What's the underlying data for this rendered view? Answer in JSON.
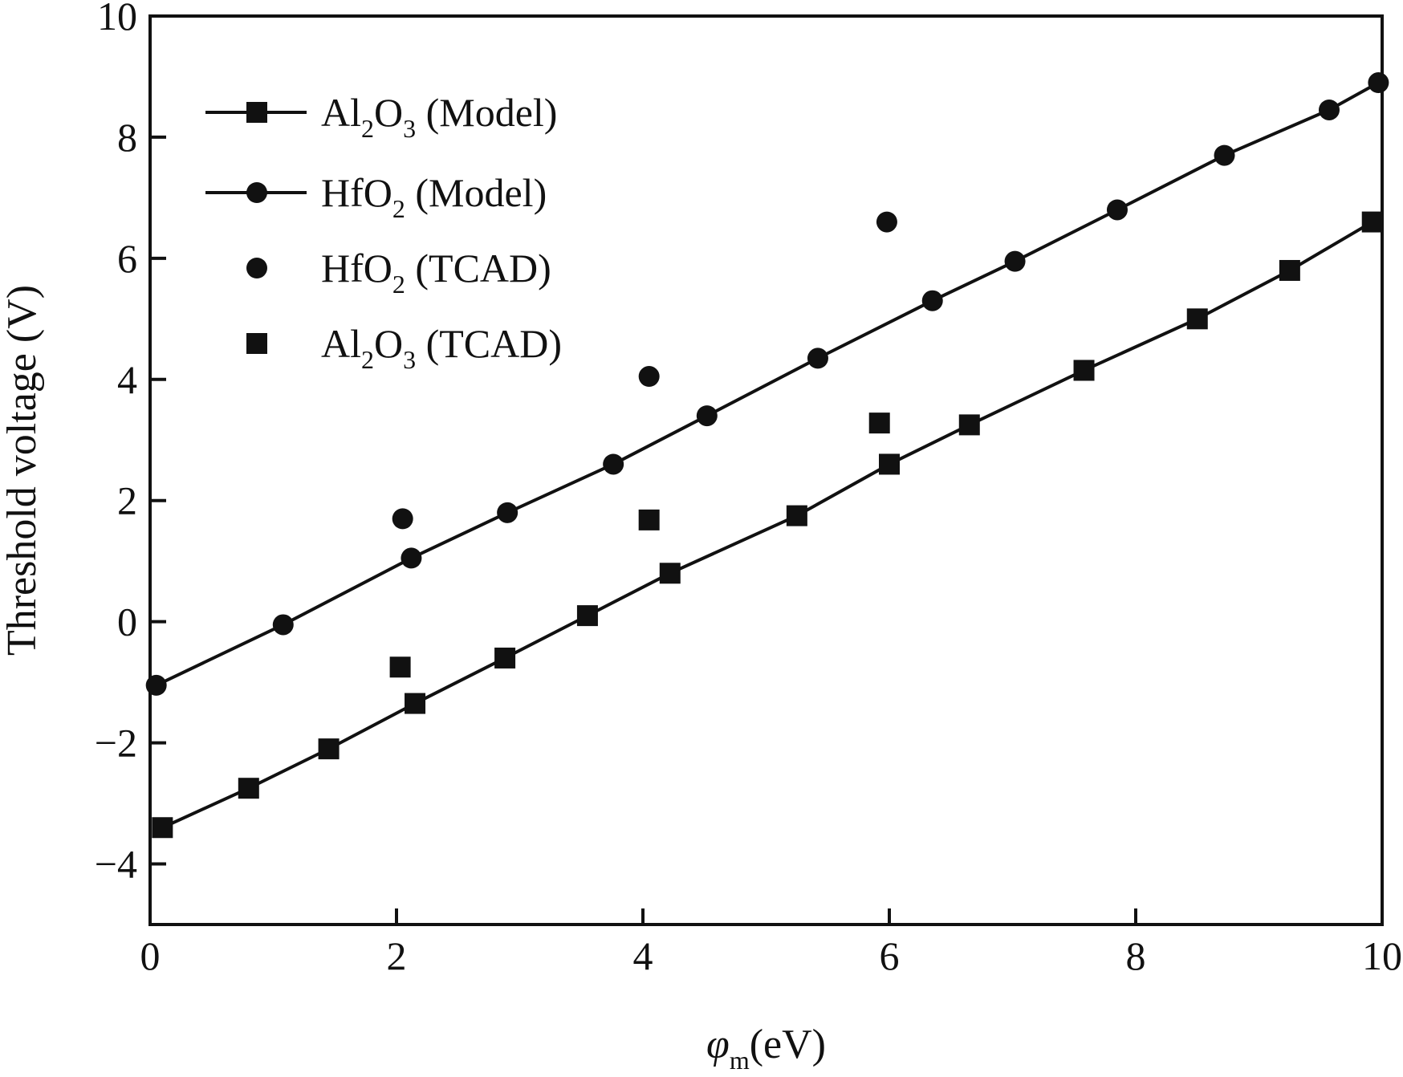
{
  "chart_data": {
    "type": "line",
    "xlabel": {
      "symbol": "φ",
      "subscript": "m",
      "unit": "(eV)"
    },
    "ylabel": "Threshold voltage (V)",
    "xlim": [
      0,
      10
    ],
    "ylim": [
      -5,
      10
    ],
    "x_ticks": [
      0,
      2,
      4,
      6,
      8,
      10
    ],
    "y_ticks": [
      -4,
      -2,
      0,
      2,
      4,
      6,
      8,
      10
    ],
    "x_tick_labels": [
      "0",
      "2",
      "4",
      "6",
      "8",
      "10"
    ],
    "y_tick_labels": [
      "−4",
      "−2",
      "0",
      "2",
      "4",
      "6",
      "8",
      "10"
    ],
    "grid": false,
    "legend_position": "top-left",
    "series": [
      {
        "name": "Al2O3 (Model)",
        "legend": {
          "base": "Al",
          "sub1": "2",
          "mid": "O",
          "sub2": "3",
          "tail": " (Model)"
        },
        "marker": "square",
        "line": true,
        "color": "#111111",
        "x": [
          0.1,
          0.8,
          1.45,
          2.15,
          2.88,
          3.55,
          4.22,
          5.25,
          6.0,
          6.65,
          7.58,
          8.5,
          9.25,
          9.92
        ],
        "y": [
          -3.4,
          -2.75,
          -2.1,
          -1.35,
          -0.6,
          0.1,
          0.8,
          1.75,
          2.6,
          3.25,
          4.15,
          5.0,
          5.8,
          6.6
        ]
      },
      {
        "name": "HfO2 (Model)",
        "legend": {
          "base": "Hf",
          "sub1": "",
          "mid": "O",
          "sub2": "2",
          "tail": " (Model)"
        },
        "marker": "circle",
        "line": true,
        "color": "#111111",
        "x": [
          0.05,
          1.08,
          2.12,
          2.9,
          3.76,
          4.52,
          5.42,
          6.35,
          7.02,
          7.85,
          8.72,
          9.57,
          9.97
        ],
        "y": [
          -1.05,
          -0.05,
          1.05,
          1.8,
          2.6,
          3.4,
          4.35,
          5.3,
          5.95,
          6.8,
          7.7,
          8.45,
          8.9
        ]
      },
      {
        "name": "HfO2 (TCAD)",
        "legend": {
          "base": "Hf",
          "sub1": "",
          "mid": "O",
          "sub2": "2",
          "tail": " (TCAD)"
        },
        "marker": "circle",
        "line": false,
        "color": "#111111",
        "x": [
          2.05,
          4.05,
          5.98
        ],
        "y": [
          1.7,
          4.05,
          6.6
        ]
      },
      {
        "name": "Al2O3 (TCAD)",
        "legend": {
          "base": "Al",
          "sub1": "2",
          "mid": "O",
          "sub2": "3",
          "tail": " (TCAD)"
        },
        "marker": "square",
        "line": false,
        "color": "#111111",
        "x": [
          2.03,
          4.05,
          5.92
        ],
        "y": [
          -0.75,
          1.68,
          3.28
        ]
      }
    ]
  }
}
